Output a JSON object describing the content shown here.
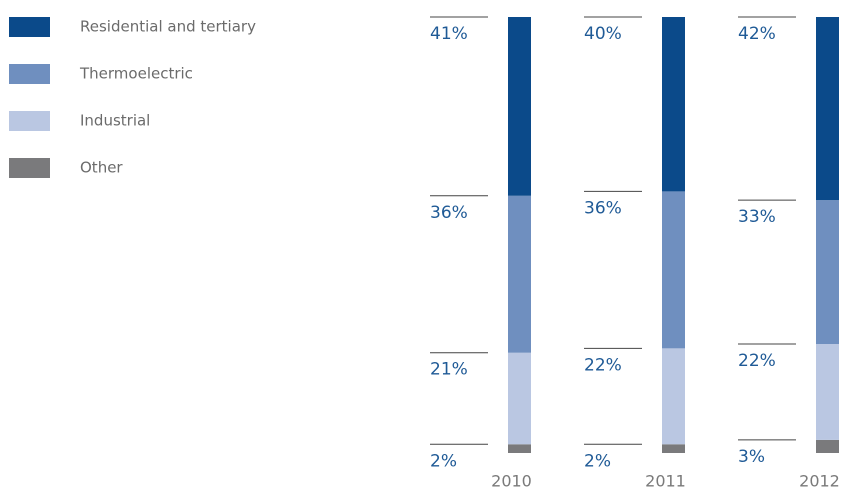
{
  "chart_data": {
    "type": "stacked_bar",
    "categories": [
      "2010",
      "2011",
      "2012"
    ],
    "ylim": [
      0,
      100
    ],
    "series": [
      {
        "name": "Residential and tertiary",
        "color": "#0b4a8a",
        "values": [
          41,
          40,
          42
        ],
        "value_labels": [
          "41%",
          "40%",
          "42%"
        ]
      },
      {
        "name": "Thermoelectric",
        "color": "#6f8fbf",
        "values": [
          36,
          36,
          33
        ],
        "value_labels": [
          "36%",
          "36%",
          "33%"
        ]
      },
      {
        "name": "Industrial",
        "color": "#bac7e2",
        "values": [
          21,
          22,
          22
        ],
        "value_labels": [
          "21%",
          "22%",
          "22%"
        ]
      },
      {
        "name": "Other",
        "color": "#7a7a7c",
        "values": [
          2,
          2,
          3
        ],
        "value_labels": [
          "2%",
          "2%",
          "3%"
        ]
      }
    ]
  }
}
